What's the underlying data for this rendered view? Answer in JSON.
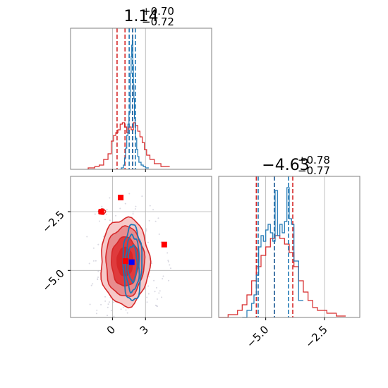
{
  "colors": {
    "red": "#d62728",
    "blue": "#1f77b4",
    "marker_red": "#ff0000",
    "marker_blue": "#0000ff",
    "grid": "#b0b0b0",
    "frame": "#808080"
  },
  "chart_data": [
    {
      "type": "histogram",
      "panel": "top-left marginal",
      "title": {
        "value": "1.14",
        "sup": "+0.70",
        "sub": "−0.72"
      },
      "x_range": [
        -3.8,
        9.0
      ],
      "y_range": [
        0,
        1
      ],
      "grid": true,
      "series": [
        {
          "color": "red",
          "step_x": [
            -2.2,
            -1.6,
            -1.2,
            -0.8,
            -0.4,
            -0.1,
            0.1,
            0.3,
            0.5,
            0.7,
            0.9,
            1.1,
            1.3,
            1.5,
            1.7,
            1.9,
            2.1,
            2.3,
            2.5,
            2.7,
            2.9,
            3.1,
            3.4,
            3.8,
            4.4,
            5.2
          ],
          "step_y": [
            0.01,
            0.02,
            0.03,
            0.07,
            0.11,
            0.2,
            0.24,
            0.26,
            0.28,
            0.32,
            0.33,
            0.3,
            0.26,
            0.3,
            0.28,
            0.33,
            0.31,
            0.27,
            0.23,
            0.19,
            0.14,
            0.1,
            0.07,
            0.04,
            0.02,
            0.0
          ],
          "quantile_lines": [
            0.42,
            1.14,
            1.84
          ]
        },
        {
          "color": "blue",
          "step_x": [
            0.8,
            1.0,
            1.1,
            1.2,
            1.3,
            1.4,
            1.5,
            1.6,
            1.65,
            1.7,
            1.75,
            1.8,
            1.85,
            1.9,
            1.95,
            2.0,
            2.05,
            2.1,
            2.2,
            2.3,
            2.4,
            2.6,
            2.8,
            3.0,
            3.3
          ],
          "step_y": [
            0.01,
            0.03,
            0.08,
            0.15,
            0.24,
            0.32,
            0.4,
            0.52,
            0.68,
            0.8,
            0.88,
            0.92,
            0.74,
            0.6,
            0.5,
            0.36,
            0.3,
            0.22,
            0.14,
            0.09,
            0.05,
            0.03,
            0.02,
            0.01,
            0.0
          ],
          "quantile_lines": [
            1.52,
            1.82,
            2.08
          ]
        }
      ]
    },
    {
      "type": "contour",
      "panel": "bottom-left 2D",
      "x_range": [
        -3.8,
        9.0
      ],
      "y_range": [
        -7.0,
        -1.0
      ],
      "xticks": [
        "0",
        "3"
      ],
      "xtick_values": [
        0,
        3
      ],
      "yticks": [
        "−2.5",
        "−5.0"
      ],
      "ytick_values": [
        -2.5,
        -5.0
      ],
      "grid": true,
      "series": [
        {
          "color": "red",
          "center": [
            1.14,
            -4.63
          ],
          "spread": [
            1.3,
            1.1
          ]
        },
        {
          "color": "blue",
          "center": [
            1.82,
            -4.7
          ],
          "spread": [
            0.45,
            0.85
          ]
        }
      ],
      "markers": [
        {
          "color": "marker_red",
          "x": 0.75,
          "y": -1.9
        },
        {
          "color": "marker_red",
          "x": -1.0,
          "y": -2.5
        },
        {
          "color": "marker_red",
          "x": 4.7,
          "y": -3.9
        },
        {
          "color": "marker_red",
          "x": 1.2,
          "y": -4.6
        },
        {
          "color": "marker_blue",
          "x": 1.75,
          "y": -4.65
        }
      ]
    },
    {
      "type": "histogram",
      "panel": "bottom-right marginal",
      "title": {
        "value": "−4.63",
        "sup": "+0.78",
        "sub": "−0.77"
      },
      "x_range": [
        -7.0,
        -1.0
      ],
      "y_range": [
        0,
        1
      ],
      "xticks": [
        "−5.0",
        "−2.5"
      ],
      "xtick_values": [
        -5.0,
        -2.5
      ],
      "grid": true,
      "series": [
        {
          "color": "red",
          "step_x": [
            -7.0,
            -6.6,
            -6.2,
            -6.0,
            -5.8,
            -5.6,
            -5.4,
            -5.2,
            -5.0,
            -4.8,
            -4.6,
            -4.4,
            -4.2,
            -4.0,
            -3.8,
            -3.6,
            -3.4,
            -3.2,
            -3.0,
            -2.8,
            -2.4,
            -2.0,
            -1.6
          ],
          "step_y": [
            0.0,
            0.02,
            0.05,
            0.09,
            0.16,
            0.26,
            0.36,
            0.44,
            0.5,
            0.56,
            0.58,
            0.56,
            0.52,
            0.46,
            0.36,
            0.26,
            0.18,
            0.12,
            0.07,
            0.05,
            0.03,
            0.01,
            0.0
          ],
          "quantile_lines": [
            -5.4,
            -4.63,
            -3.85
          ]
        },
        {
          "color": "blue",
          "step_x": [
            -6.0,
            -5.8,
            -5.6,
            -5.5,
            -5.4,
            -5.3,
            -5.2,
            -5.1,
            -5.0,
            -4.9,
            -4.8,
            -4.7,
            -4.6,
            -4.5,
            -4.4,
            -4.3,
            -4.2,
            -4.1,
            -4.0,
            -3.9,
            -3.8,
            -3.6,
            -3.4
          ],
          "step_y": [
            0.0,
            0.05,
            0.1,
            0.16,
            0.3,
            0.5,
            0.58,
            0.54,
            0.62,
            0.66,
            0.6,
            0.54,
            0.9,
            0.58,
            0.66,
            0.6,
            0.68,
            0.92,
            0.7,
            0.66,
            0.4,
            0.12,
            0.0
          ],
          "quantile_lines": [
            -5.32,
            -4.63,
            -4.03
          ]
        }
      ]
    }
  ]
}
